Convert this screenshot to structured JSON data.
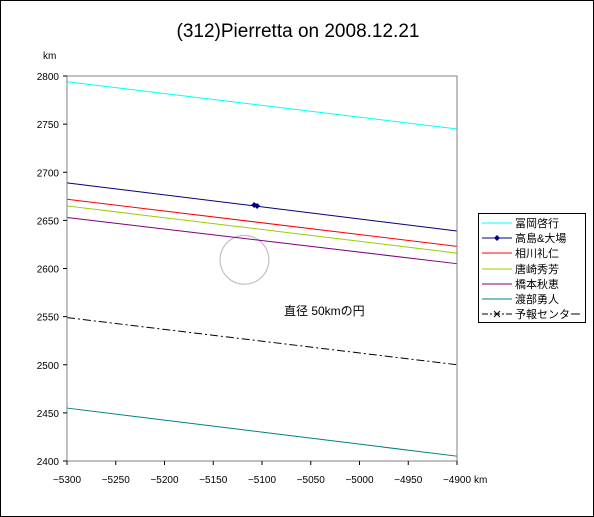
{
  "chart_data": {
    "type": "line",
    "title": "(312)Pierretta on 2008.12.21",
    "xlabel": "km",
    "ylabel": "km",
    "xlim": [
      -5300,
      -4900
    ],
    "ylim": [
      2400,
      2800
    ],
    "x_ticks": [
      "-5300",
      "-5250",
      "-5200",
      "-5150",
      "-5100",
      "-5050",
      "-5000",
      "-4950",
      "-4900"
    ],
    "y_ticks": [
      "2400",
      "2450",
      "2500",
      "2550",
      "2600",
      "2650",
      "2700",
      "2750",
      "2800"
    ],
    "grid": false,
    "legend_position": "right",
    "series": [
      {
        "name": "冨岡啓行",
        "color": "#00ffff",
        "style": "solid",
        "x": [
          -5300,
          -4900
        ],
        "y": [
          2794,
          2745
        ]
      },
      {
        "name": "高島&大場",
        "color": "#000080",
        "style": "solid",
        "x": [
          -5300,
          -4900
        ],
        "y": [
          2689,
          2639
        ],
        "markers": [
          {
            "x": -5108,
            "y": 2666
          },
          {
            "x": -5105,
            "y": 2665
          }
        ]
      },
      {
        "name": "相川礼仁",
        "color": "#ff0000",
        "style": "solid",
        "x": [
          -5300,
          -4900
        ],
        "y": [
          2672,
          2623
        ]
      },
      {
        "name": "唐崎秀芳",
        "color": "#99cc00",
        "style": "solid",
        "x": [
          -5300,
          -4900
        ],
        "y": [
          2665,
          2616
        ]
      },
      {
        "name": "橋本秋恵",
        "color": "#800080",
        "style": "solid",
        "x": [
          -5300,
          -4900
        ],
        "y": [
          2653,
          2605
        ]
      },
      {
        "name": "渡部勇人",
        "color": "#008080",
        "style": "solid",
        "x": [
          -5300,
          -4900
        ],
        "y": [
          2455,
          2405
        ]
      },
      {
        "name": "予報センター",
        "color": "#000000",
        "style": "dashdot",
        "x": [
          -5300,
          -4900
        ],
        "y": [
          2549,
          2500
        ]
      }
    ],
    "circle": {
      "cx": -5118,
      "cy": 2609,
      "r": 25,
      "color": "#c0c0c0"
    },
    "annotations": [
      {
        "text": "直径 50kmの円"
      }
    ]
  }
}
